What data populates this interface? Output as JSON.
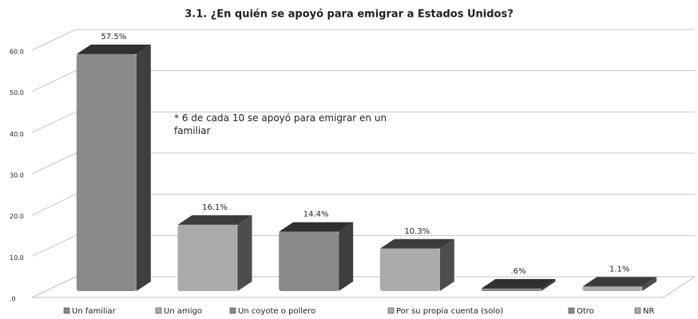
{
  "chart_data": {
    "type": "bar3d",
    "title": "3.1. ¿En quién se apoyó para emigrar a Estados Unidos?",
    "annotation": "* 6 de cada 10 se apoyó para emigrar en un familiar",
    "categories": [
      "Un familiar",
      "Un amigo",
      "Un coyote o pollero",
      "Por su propia cuenta (solo)",
      "Otro",
      "NR"
    ],
    "values": [
      57.5,
      16.1,
      14.4,
      10.3,
      0.6,
      1.1
    ],
    "value_labels": [
      "57.5%",
      "16.1%",
      "14.4%",
      "10.3%",
      ".6%",
      "1.1%"
    ],
    "colors": [
      "#8a8a8a",
      "#ababab",
      "#8a8a8a",
      "#ababab",
      "#8a8a8a",
      "#ababab"
    ],
    "ylim": [
      0,
      60
    ],
    "yticks": [
      {
        "value": 0,
        "label": ".0"
      },
      {
        "value": 10,
        "label": "10.0"
      },
      {
        "value": 20,
        "label": "20.0"
      },
      {
        "value": 30,
        "label": "30.0"
      },
      {
        "value": 40,
        "label": "40.0"
      },
      {
        "value": 50,
        "label": "50.0"
      },
      {
        "value": 60,
        "label": "60.0"
      }
    ],
    "grid": true,
    "legend": "bottom"
  }
}
